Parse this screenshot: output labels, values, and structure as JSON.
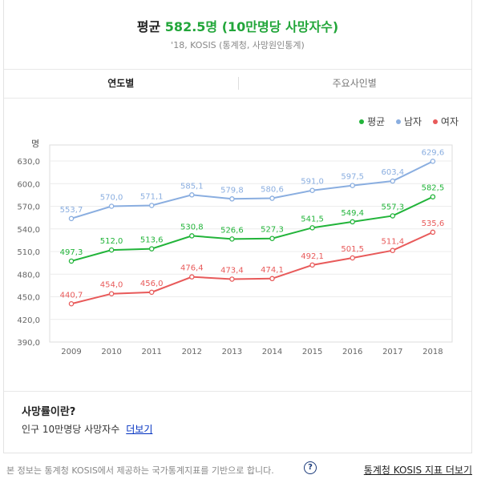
{
  "header": {
    "title_prefix": "평균",
    "title_value": "582.5명",
    "title_suffix": "(10만명당 사망자수)",
    "source": "'18, KOSIS (통계청, 사망원인통계)"
  },
  "tabs": [
    {
      "label": "연도별",
      "active": true
    },
    {
      "label": "주요사인별",
      "active": false
    }
  ],
  "legend": [
    {
      "label": "평균",
      "color": "#22b43a"
    },
    {
      "label": "남자",
      "color": "#8aaee0"
    },
    {
      "label": "여자",
      "color": "#e85a5a"
    }
  ],
  "chart_data": {
    "type": "line",
    "ylabel": "명",
    "ylim": [
      390,
      630
    ],
    "yticks": [
      "390,0",
      "420,0",
      "450,0",
      "480,0",
      "510,0",
      "540,0",
      "570,0",
      "600,0",
      "630,0"
    ],
    "x": [
      "2009",
      "2010",
      "2011",
      "2012",
      "2013",
      "2014",
      "2015",
      "2016",
      "2017",
      "2018"
    ],
    "series": [
      {
        "name": "남자",
        "color": "#8aaee0",
        "values": [
          553.7,
          570.0,
          571.1,
          585.1,
          579.8,
          580.6,
          591.0,
          597.5,
          603.4,
          629.6
        ],
        "labels": [
          "553,7",
          "570,0",
          "571,1",
          "585,1",
          "579,8",
          "580,6",
          "591,0",
          "597,5",
          "603,4",
          "629,6"
        ]
      },
      {
        "name": "평균",
        "color": "#22b43a",
        "values": [
          497.3,
          512.0,
          513.6,
          530.8,
          526.6,
          527.3,
          541.5,
          549.4,
          557.3,
          582.5
        ],
        "labels": [
          "497,3",
          "512,0",
          "513,6",
          "530,8",
          "526,6",
          "527,3",
          "541,5",
          "549,4",
          "557,3",
          "582,5"
        ]
      },
      {
        "name": "여자",
        "color": "#e85a5a",
        "values": [
          440.7,
          454.0,
          456.0,
          476.4,
          473.4,
          474.1,
          492.1,
          501.5,
          511.4,
          535.6
        ],
        "labels": [
          "440,7",
          "454,0",
          "456,0",
          "476,4",
          "473,4",
          "474,1",
          "492,1",
          "501,5",
          "511,4",
          "535,6"
        ]
      }
    ],
    "grid": true,
    "legend_position": "top-right"
  },
  "info": {
    "title": "사망률이란?",
    "text": "인구 10만명당 사망자수",
    "link": "더보기"
  },
  "footer": {
    "text": "본 정보는 통계청 KOSIS에서 제공하는 국가통계지표를 기반으로 합니다.",
    "help": "?",
    "link": "통계청 KOSIS 지표 더보기"
  }
}
